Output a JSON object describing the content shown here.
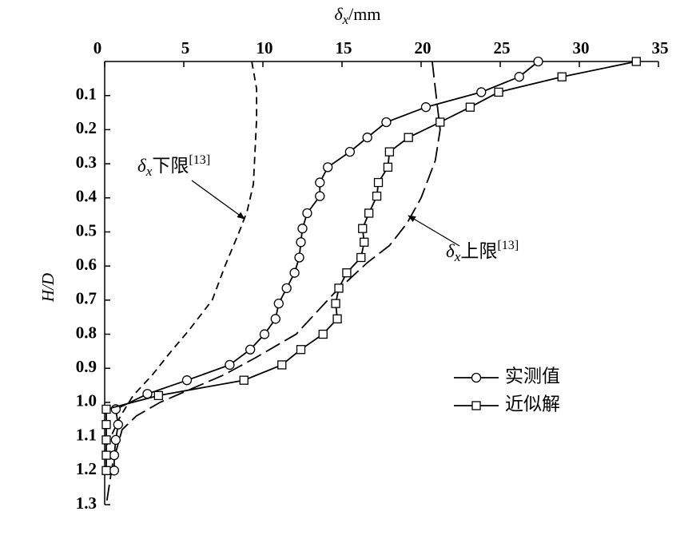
{
  "chart_data": {
    "type": "line",
    "x_label": {
      "symbol": "δ",
      "sub": "x",
      "text": "/mm"
    },
    "y_label": "H/D",
    "xlim": [
      0,
      35
    ],
    "xticks": [
      0,
      5,
      10,
      15,
      20,
      25,
      30,
      35
    ],
    "ylim": [
      0,
      1.3
    ],
    "y_inverted": true,
    "yticks": [
      0.1,
      0.2,
      0.3,
      0.4,
      0.5,
      0.6,
      0.7,
      0.8,
      0.9,
      {
        "value": 1,
        "label": "1.0"
      },
      1.1,
      1.2,
      1.3
    ],
    "color": "#000000",
    "series": [
      {
        "name": "实测值",
        "marker": "circle",
        "x": [
          27.4,
          26.2,
          23.8,
          20.3,
          17.8,
          16.6,
          15.5,
          14.1,
          13.6,
          13.6,
          12.8,
          12.5,
          12.4,
          12.3,
          12.0,
          11.5,
          11.0,
          10.8,
          10.1,
          9.2,
          7.9,
          5.2,
          2.7,
          0.7,
          0.85,
          0.7,
          0.6,
          0.6
        ],
        "values": [
          0,
          0.045,
          0.09,
          0.134,
          0.178,
          0.223,
          0.265,
          0.31,
          0.355,
          0.395,
          0.445,
          0.49,
          0.53,
          0.575,
          0.62,
          0.665,
          0.71,
          0.755,
          0.8,
          0.845,
          0.89,
          0.935,
          0.975,
          1.02,
          1.065,
          1.11,
          1.155,
          1.2
        ]
      },
      {
        "name": "近似解",
        "marker": "square",
        "x": [
          33.6,
          28.9,
          24.9,
          23.1,
          21.2,
          19.2,
          18.0,
          17.9,
          17.3,
          17.2,
          16.7,
          16.3,
          16.4,
          16.2,
          15.3,
          14.8,
          14.6,
          14.7,
          13.8,
          12.4,
          11.2,
          8.8,
          3.4,
          0.1,
          0.1,
          0.1,
          0.1,
          0.1
        ],
        "values": [
          0,
          0.045,
          0.09,
          0.134,
          0.178,
          0.223,
          0.265,
          0.31,
          0.355,
          0.395,
          0.445,
          0.49,
          0.53,
          0.575,
          0.62,
          0.665,
          0.71,
          0.755,
          0.8,
          0.845,
          0.89,
          0.935,
          0.98,
          1.02,
          1.065,
          1.11,
          1.155,
          1.2
        ]
      }
    ],
    "limits": [
      {
        "label": {
          "symbol": "δ",
          "sub": "x",
          "text": "下限",
          "sup": "[13]"
        },
        "dash": "9 6",
        "x": [
          9.3,
          9.6,
          9.6,
          9.4,
          9.0,
          8.5,
          7.6,
          6.8,
          5.3,
          4.2,
          3.0,
          1.8,
          1.0,
          0.4,
          0
        ],
        "values": [
          0,
          0.08,
          0.17,
          0.36,
          0.44,
          0.5,
          0.6,
          0.7,
          0.79,
          0.85,
          0.92,
          0.98,
          1.04,
          1.1,
          1.14
        ]
      },
      {
        "label": {
          "symbol": "δ",
          "sub": "x",
          "text": "上限",
          "sup": "[13]"
        },
        "dash": "20 7",
        "x": [
          20.7,
          20.9,
          21.2,
          20.9,
          20.0,
          19.1,
          18.0,
          16.6,
          14.5,
          12.1,
          9.5,
          7.5,
          5.5,
          3.5,
          2.0,
          1.1,
          0.5,
          0.1
        ],
        "values": [
          0,
          0.08,
          0.2,
          0.29,
          0.4,
          0.475,
          0.54,
          0.59,
          0.68,
          0.8,
          0.87,
          0.92,
          0.96,
          1.0,
          1.04,
          1.08,
          1.18,
          1.3
        ]
      }
    ]
  }
}
